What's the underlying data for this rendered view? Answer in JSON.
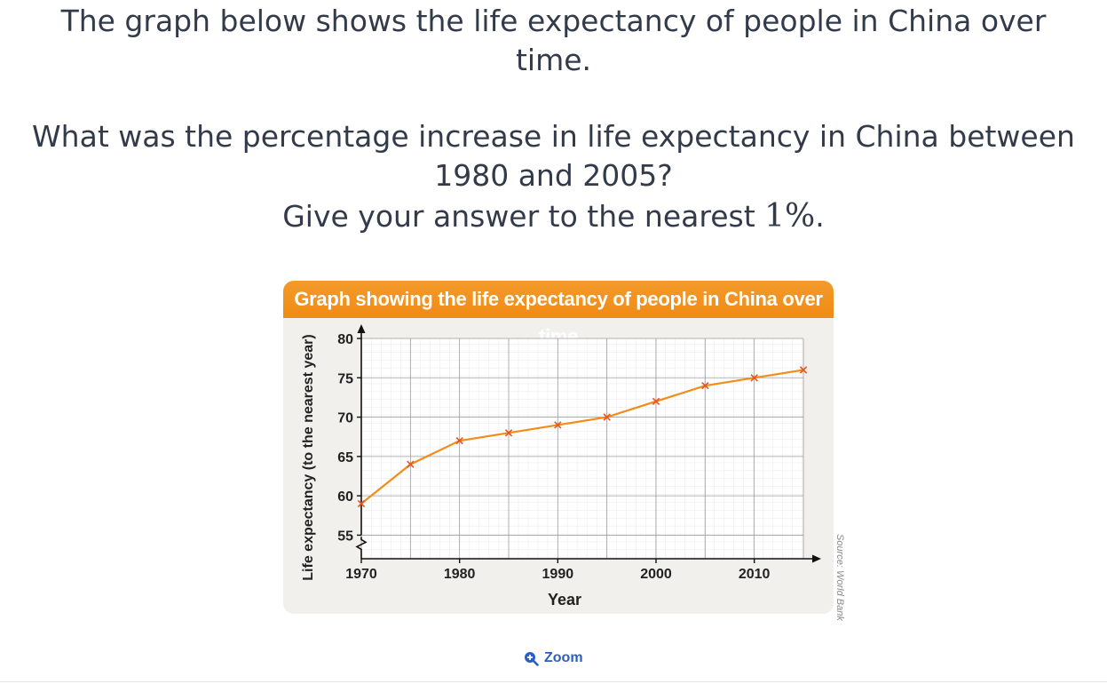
{
  "question": {
    "line1": "The graph below shows the life expectancy of people in China over",
    "line1b": "time.",
    "line2": "What was the percentage increase in life expectancy in China between",
    "line3": "1980 and 2005?",
    "line4_prefix": "Give your answer to the nearest ",
    "line4_math": "1%",
    "line4_suffix": "."
  },
  "chart_data": {
    "type": "line",
    "title": "Graph showing the life expectancy of people in China over time",
    "xlabel": "Year",
    "ylabel": "Life expectancy (to the nearest year)",
    "x_ticks": [
      1970,
      1980,
      1990,
      2000,
      2010
    ],
    "y_ticks": [
      55,
      60,
      65,
      70,
      75,
      80
    ],
    "xlim": [
      1970,
      2015
    ],
    "ylim": [
      55,
      80
    ],
    "y_axis_break": true,
    "grid": true,
    "series": [
      {
        "color": "#f28c1a",
        "marker": "x",
        "marker_color": "#e8541e",
        "x": [
          1970,
          1975,
          1980,
          1985,
          1990,
          1995,
          2000,
          2005,
          2010,
          2015
        ],
        "y": [
          59,
          64,
          67,
          68,
          69,
          70,
          72,
          74,
          75,
          76
        ]
      }
    ]
  },
  "source": "Source: World Bank",
  "zoom": {
    "label": "Zoom",
    "icon": "zoom-in-icon"
  }
}
